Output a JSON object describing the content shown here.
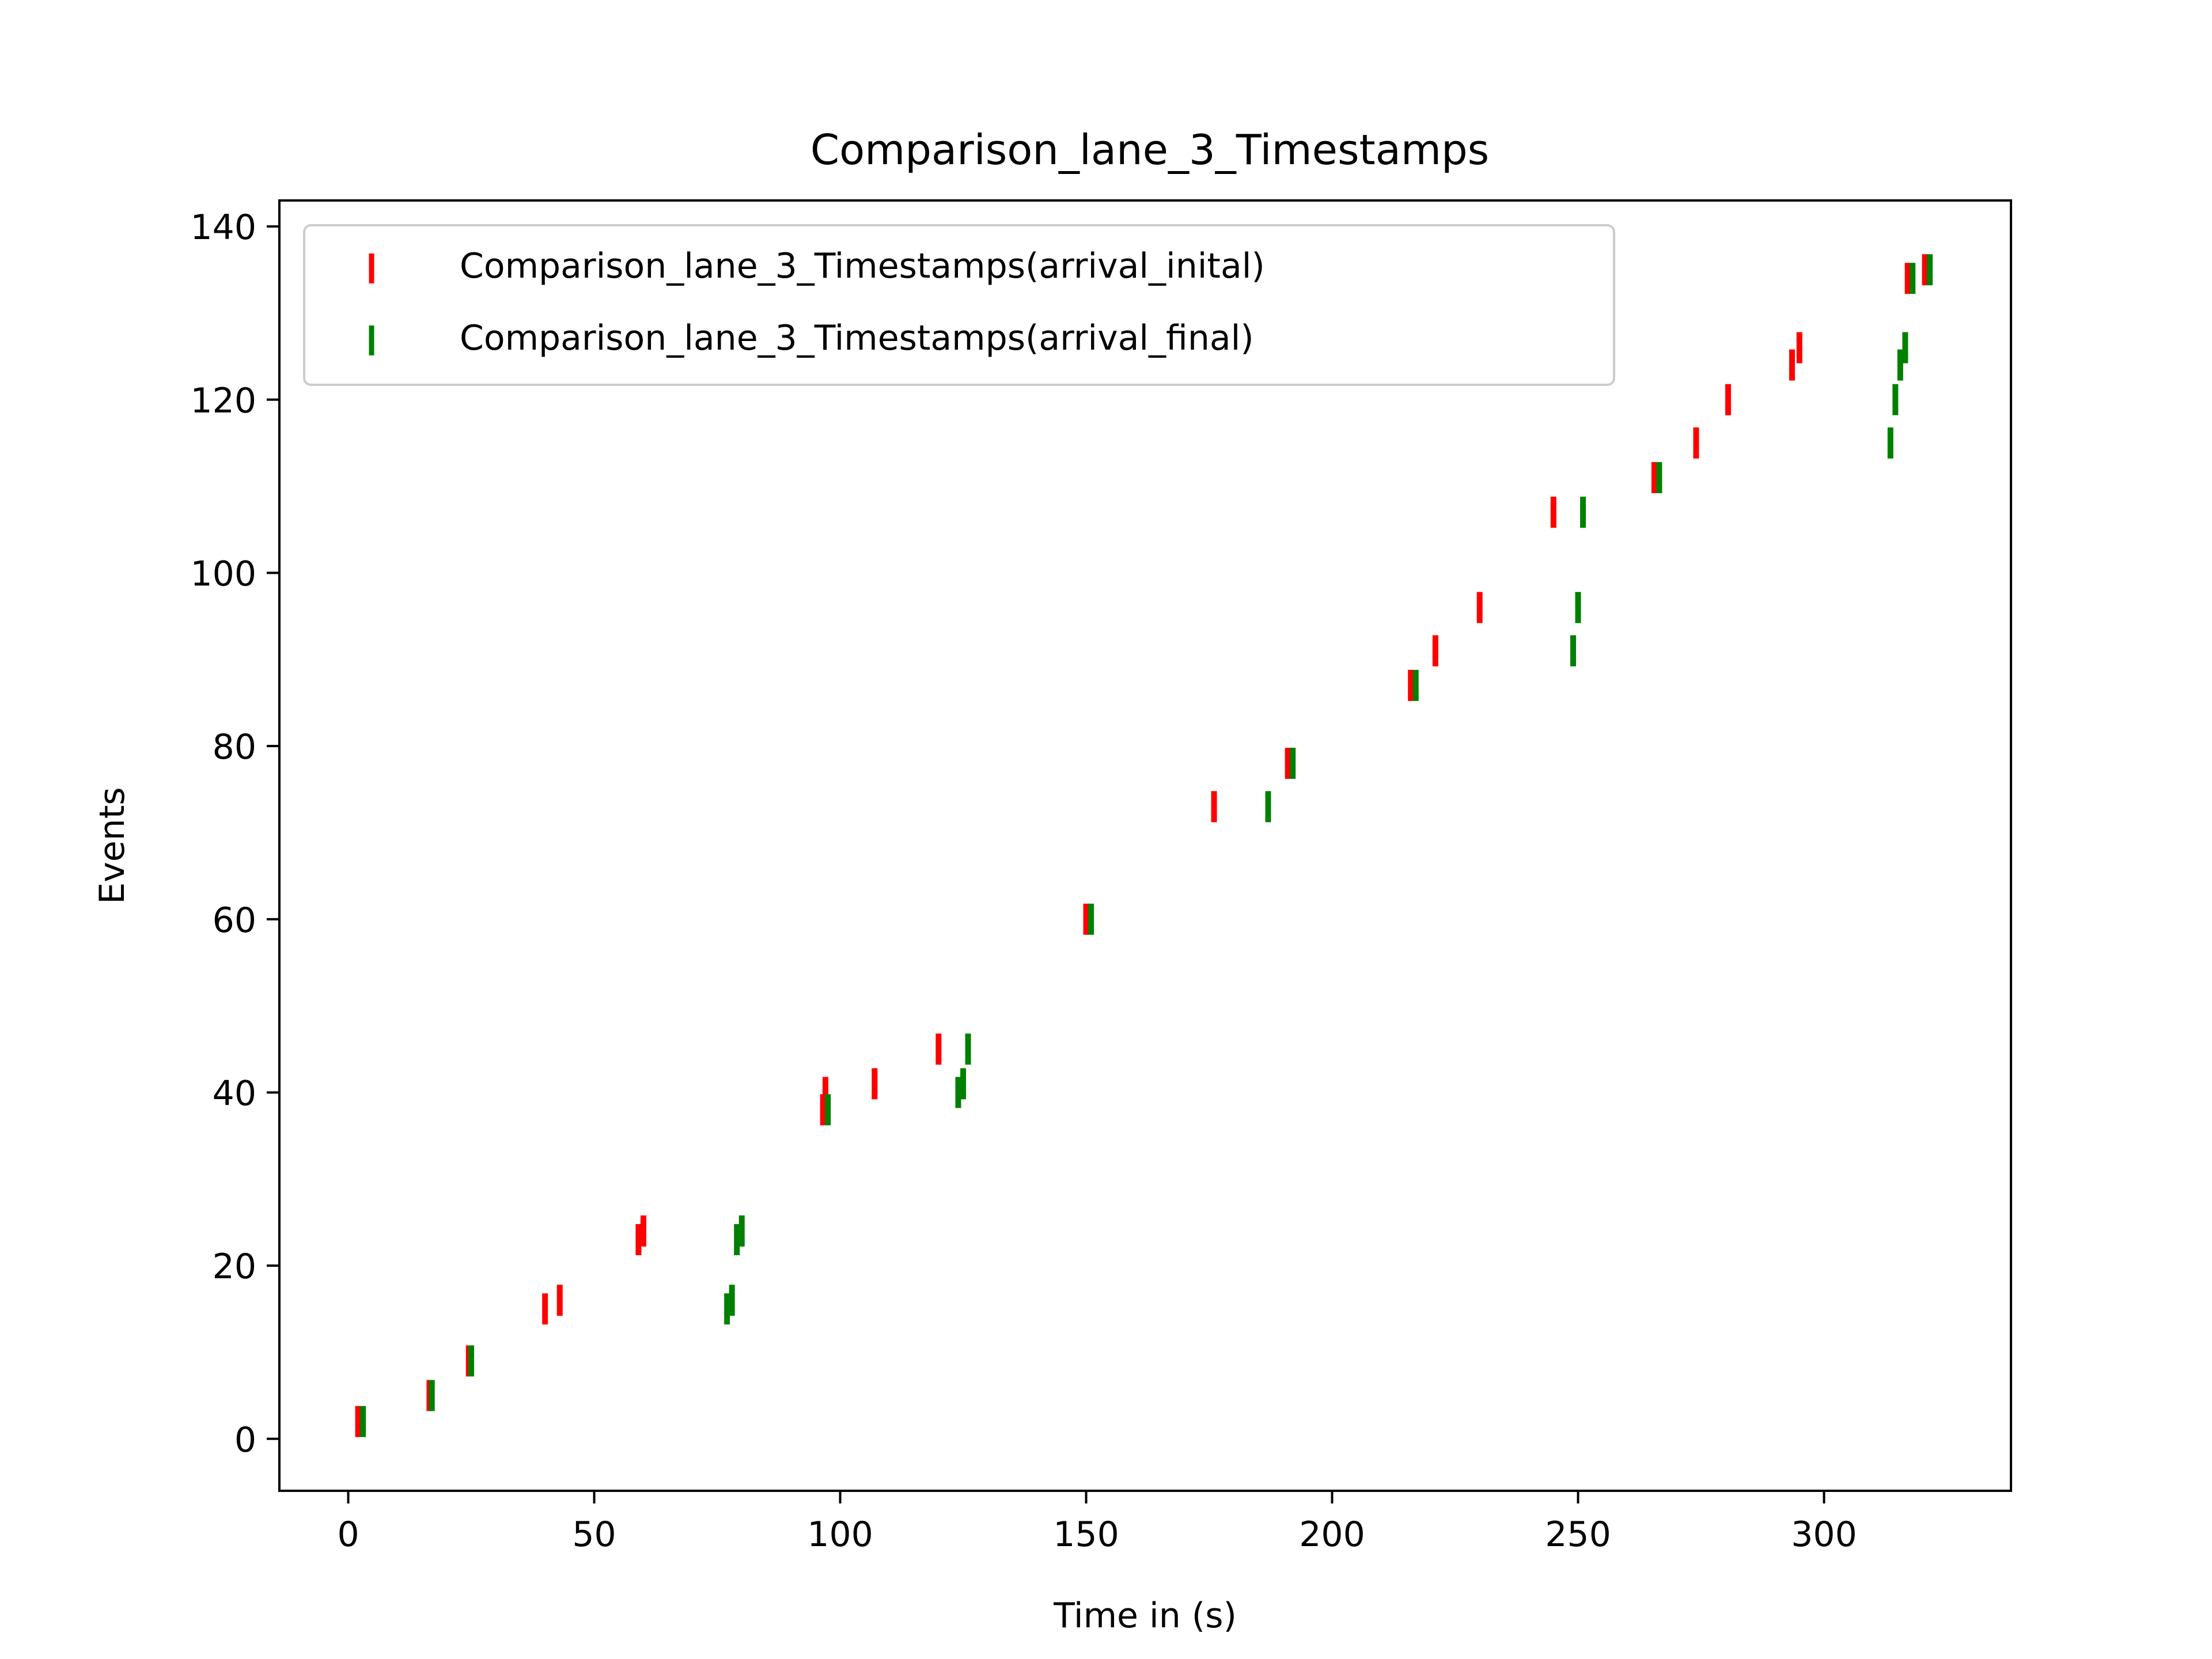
{
  "chart_data": {
    "type": "scatter",
    "title": "Comparison_lane_3_Timestamps",
    "xlabel": "Time in (s)",
    "ylabel": "Events",
    "xlim": [
      -14,
      338
    ],
    "ylim": [
      -6,
      143
    ],
    "x_ticks": [
      0,
      50,
      100,
      150,
      200,
      250,
      300
    ],
    "y_ticks": [
      0,
      20,
      40,
      60,
      80,
      100,
      120,
      140
    ],
    "grid": false,
    "legend_position": "top-left",
    "marker": "vertical-tick",
    "series": [
      {
        "name": "Comparison_lane_3_Timestamps(arrival_inital)",
        "color": "#ff0000",
        "points": [
          [
            2,
            2
          ],
          [
            16.5,
            5
          ],
          [
            24.5,
            9
          ],
          [
            40,
            15
          ],
          [
            43,
            16
          ],
          [
            59,
            23
          ],
          [
            60,
            24
          ],
          [
            96.5,
            38
          ],
          [
            97,
            40
          ],
          [
            107,
            41
          ],
          [
            120,
            45
          ],
          [
            150,
            60
          ],
          [
            176,
            73
          ],
          [
            191,
            78
          ],
          [
            216,
            87
          ],
          [
            221,
            91
          ],
          [
            230,
            96
          ],
          [
            245,
            107
          ],
          [
            265.5,
            111
          ],
          [
            274,
            115
          ],
          [
            280.5,
            120
          ],
          [
            293.5,
            124
          ],
          [
            295,
            126
          ],
          [
            317,
            134
          ],
          [
            320.5,
            135
          ]
        ]
      },
      {
        "name": "Comparison_lane_3_Timestamps(arrival_final)",
        "color": "#008000",
        "points": [
          [
            3,
            2
          ],
          [
            17,
            5
          ],
          [
            25,
            9
          ],
          [
            77,
            15
          ],
          [
            78,
            16
          ],
          [
            79,
            23
          ],
          [
            80,
            24
          ],
          [
            97.5,
            38
          ],
          [
            124,
            40
          ],
          [
            125,
            41
          ],
          [
            126,
            45
          ],
          [
            151,
            60
          ],
          [
            187,
            73
          ],
          [
            192,
            78
          ],
          [
            217,
            87
          ],
          [
            249,
            91
          ],
          [
            250,
            96
          ],
          [
            251,
            107
          ],
          [
            266.5,
            111
          ],
          [
            313.5,
            115
          ],
          [
            314.5,
            120
          ],
          [
            315.5,
            124
          ],
          [
            316.5,
            126
          ],
          [
            318,
            134
          ],
          [
            321.5,
            135
          ]
        ]
      }
    ]
  }
}
